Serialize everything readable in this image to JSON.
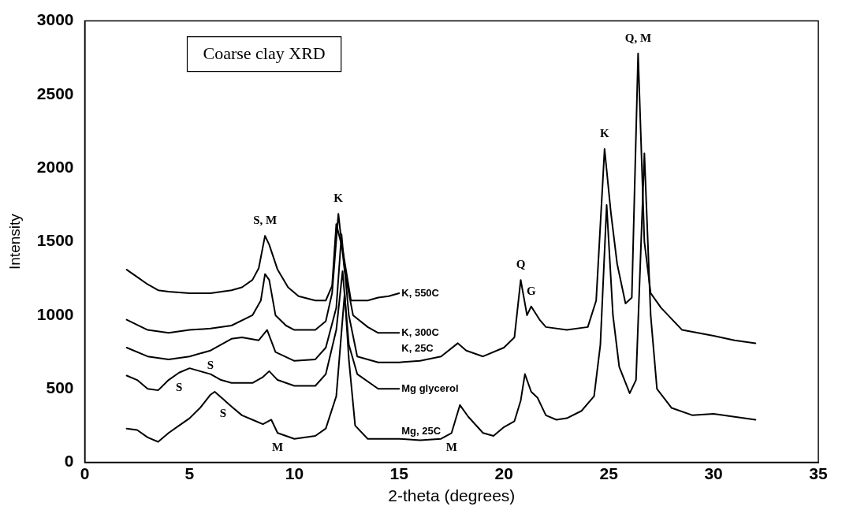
{
  "chart_data": {
    "type": "line",
    "title": "Coarse clay XRD",
    "xlabel": "2-theta (degrees)",
    "ylabel": "Intensity",
    "xlim": [
      0,
      35
    ],
    "xticks": [
      0,
      5,
      10,
      15,
      20,
      25,
      30,
      35
    ],
    "ylim": [
      0,
      3000
    ],
    "yticks": [
      0,
      500,
      1000,
      1500,
      2000,
      2500,
      3000
    ],
    "grid": false,
    "legend": false,
    "marker": "none",
    "line_style": "solid",
    "series": [
      {
        "name": "K, 550C",
        "color": "#000000",
        "x": [
          2,
          2.5,
          3,
          3.5,
          4,
          5,
          6,
          7,
          7.5,
          8,
          8.3,
          8.6,
          8.8,
          9.2,
          9.7,
          10.2,
          11,
          11.5,
          11.8,
          12,
          12.3,
          12.7,
          13.5,
          14,
          14.5,
          15
        ],
        "values": [
          1310,
          1260,
          1210,
          1170,
          1160,
          1150,
          1150,
          1170,
          1190,
          1240,
          1320,
          1540,
          1480,
          1310,
          1190,
          1130,
          1100,
          1100,
          1200,
          1620,
          1450,
          1100,
          1100,
          1120,
          1130,
          1150
        ]
      },
      {
        "name": "K, 300C",
        "color": "#000000",
        "x": [
          2,
          3,
          4,
          5,
          6,
          7,
          8,
          8.4,
          8.6,
          8.8,
          9.1,
          9.6,
          10,
          11,
          11.5,
          11.8,
          12.1,
          12.4,
          12.8,
          13.5,
          14,
          15
        ],
        "values": [
          970,
          900,
          880,
          900,
          910,
          930,
          1000,
          1100,
          1280,
          1240,
          1000,
          930,
          900,
          900,
          960,
          1150,
          1690,
          1300,
          1000,
          920,
          880,
          880
        ]
      },
      {
        "name": "K, 25C",
        "color": "#000000",
        "x": [
          2,
          3,
          4,
          5,
          6,
          7,
          7.5,
          8.3,
          8.7,
          9.1,
          10,
          11,
          11.5,
          12,
          12.25,
          12.6,
          13,
          14,
          15,
          16,
          17,
          17.8,
          18.2,
          19,
          20,
          20.5,
          20.8,
          21.1,
          21.3,
          21.7,
          22,
          23,
          24,
          24.4,
          24.8,
          25.1,
          25.4,
          25.8,
          26.1,
          26.4,
          26.7,
          27,
          27.5,
          28.5,
          30,
          31,
          32
        ],
        "values": [
          780,
          720,
          700,
          720,
          760,
          840,
          850,
          830,
          900,
          750,
          690,
          700,
          780,
          1050,
          1550,
          1000,
          720,
          680,
          680,
          690,
          720,
          810,
          760,
          720,
          780,
          850,
          1240,
          1000,
          1060,
          970,
          920,
          900,
          920,
          1100,
          2130,
          1700,
          1350,
          1080,
          1120,
          2780,
          1500,
          1150,
          1050,
          900,
          860,
          830,
          810
        ]
      },
      {
        "name": "Mg glycerol",
        "color": "#000000",
        "x": [
          2,
          2.5,
          3,
          3.5,
          4,
          4.5,
          5,
          5.5,
          6,
          6.5,
          7,
          8,
          8.5,
          8.8,
          9.2,
          10,
          11,
          11.5,
          12,
          12.3,
          12.6,
          13,
          14,
          15
        ],
        "values": [
          590,
          560,
          500,
          490,
          560,
          610,
          640,
          620,
          600,
          560,
          540,
          540,
          580,
          620,
          560,
          520,
          520,
          600,
          900,
          1300,
          800,
          600,
          500,
          500
        ]
      },
      {
        "name": "Mg, 25C",
        "color": "#000000",
        "x": [
          2,
          2.5,
          3,
          3.5,
          4,
          4.5,
          5,
          5.5,
          6,
          6.2,
          6.6,
          7,
          7.5,
          8,
          8.5,
          8.9,
          9.2,
          10,
          11,
          11.5,
          12,
          12.4,
          12.6,
          12.9,
          13.5,
          15,
          16,
          17,
          17.5,
          17.9,
          18.3,
          19,
          19.5,
          20,
          20.5,
          20.8,
          21,
          21.3,
          21.6,
          22,
          22.5,
          23,
          23.7,
          24.3,
          24.6,
          24.9,
          25.2,
          25.5,
          26,
          26.3,
          26.7,
          27,
          27.3,
          28,
          29,
          30,
          31,
          32
        ],
        "values": [
          230,
          220,
          170,
          140,
          200,
          250,
          300,
          370,
          460,
          480,
          430,
          380,
          320,
          290,
          260,
          290,
          200,
          160,
          180,
          230,
          450,
          1150,
          700,
          250,
          160,
          160,
          150,
          160,
          200,
          390,
          310,
          200,
          180,
          240,
          280,
          420,
          600,
          480,
          440,
          320,
          290,
          300,
          350,
          450,
          800,
          1750,
          1000,
          650,
          470,
          560,
          2100,
          1000,
          500,
          370,
          320,
          330,
          310,
          290
        ]
      }
    ],
    "annotations": [
      {
        "text": "S, M",
        "x": 8.6,
        "y": 1540
      },
      {
        "text": "K",
        "x": 12.1,
        "y": 1690
      },
      {
        "text": "Q",
        "x": 20.8,
        "y": 1240
      },
      {
        "text": "G",
        "x": 21.3,
        "y": 1060
      },
      {
        "text": "K",
        "x": 24.8,
        "y": 2130
      },
      {
        "text": "Q, M",
        "x": 26.4,
        "y": 2780
      },
      {
        "text": "S",
        "x": 6,
        "y": 760
      },
      {
        "text": "S",
        "x": 4.5,
        "y": 610
      },
      {
        "text": "S",
        "x": 6.6,
        "y": 430
      },
      {
        "text": "M",
        "x": 9.2,
        "y": 200
      },
      {
        "text": "M",
        "x": 17.5,
        "y": 200
      }
    ]
  }
}
